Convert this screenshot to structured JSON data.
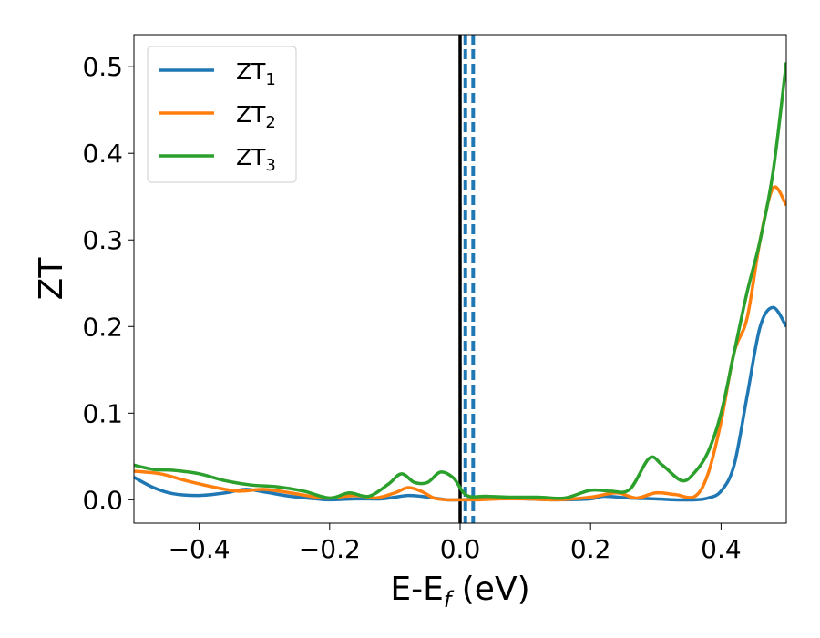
{
  "chart_data": {
    "type": "line",
    "xlabel": "E-E",
    "xlabel_sub": "f",
    "xlabel_unit": " (eV)",
    "ylabel": "ZT",
    "xlim": [
      -0.5,
      0.5
    ],
    "ylim": [
      -0.027,
      0.537
    ],
    "x_ticks": [
      -0.4,
      -0.2,
      0.0,
      0.2,
      0.4
    ],
    "x_tick_labels": [
      "−0.4",
      "−0.2",
      "0.0",
      "0.2",
      "0.4"
    ],
    "y_ticks": [
      0.0,
      0.1,
      0.2,
      0.3,
      0.4,
      0.5
    ],
    "y_tick_labels": [
      "0.0",
      "0.1",
      "0.2",
      "0.3",
      "0.4",
      "0.5"
    ],
    "legend_position": "top-left",
    "vertical_lines": [
      {
        "x": 0.0,
        "style": "solid",
        "color": "#000000"
      },
      {
        "x": 0.008,
        "style": "dashed",
        "color": "#1f77b4"
      },
      {
        "x": 0.02,
        "style": "dashed",
        "color": "#1f77b4"
      }
    ],
    "series": [
      {
        "name": "ZT",
        "name_sub": "1",
        "color": "#1f77b4",
        "x": [
          -0.5,
          -0.47,
          -0.44,
          -0.4,
          -0.36,
          -0.33,
          -0.3,
          -0.26,
          -0.22,
          -0.2,
          -0.16,
          -0.12,
          -0.1,
          -0.08,
          -0.06,
          -0.04,
          -0.02,
          0.0,
          0.03,
          0.06,
          0.1,
          0.15,
          0.2,
          0.22,
          0.26,
          0.3,
          0.33,
          0.36,
          0.38,
          0.4,
          0.42,
          0.44,
          0.46,
          0.48,
          0.5
        ],
        "y": [
          0.026,
          0.014,
          0.007,
          0.005,
          0.008,
          0.012,
          0.009,
          0.004,
          0.001,
          0.0,
          0.001,
          0.001,
          0.003,
          0.005,
          0.004,
          0.002,
          0.0,
          0.0,
          0.001,
          0.002,
          0.001,
          0.0,
          0.001,
          0.004,
          0.002,
          0.001,
          0.0,
          0.0,
          0.002,
          0.01,
          0.04,
          0.12,
          0.2,
          0.222,
          0.2
        ]
      },
      {
        "name": "ZT",
        "name_sub": "2",
        "color": "#ff7f0e",
        "x": [
          -0.5,
          -0.46,
          -0.42,
          -0.38,
          -0.34,
          -0.3,
          -0.26,
          -0.22,
          -0.2,
          -0.16,
          -0.13,
          -0.1,
          -0.08,
          -0.06,
          -0.04,
          -0.02,
          0.0,
          0.03,
          0.06,
          0.1,
          0.15,
          0.2,
          0.24,
          0.27,
          0.3,
          0.33,
          0.36,
          0.38,
          0.4,
          0.42,
          0.44,
          0.46,
          0.48,
          0.5
        ],
        "y": [
          0.033,
          0.03,
          0.022,
          0.015,
          0.01,
          0.012,
          0.008,
          0.003,
          0.002,
          0.005,
          0.002,
          0.008,
          0.014,
          0.01,
          0.002,
          0.0,
          0.0,
          0.0,
          0.001,
          0.001,
          0.0,
          0.003,
          0.008,
          0.002,
          0.008,
          0.006,
          0.004,
          0.03,
          0.09,
          0.17,
          0.21,
          0.3,
          0.36,
          0.34
        ]
      },
      {
        "name": "ZT",
        "name_sub": "3",
        "color": "#2ca02c",
        "x": [
          -0.5,
          -0.47,
          -0.44,
          -0.4,
          -0.36,
          -0.32,
          -0.28,
          -0.24,
          -0.2,
          -0.17,
          -0.14,
          -0.11,
          -0.09,
          -0.07,
          -0.05,
          -0.03,
          -0.01,
          0.01,
          0.04,
          0.08,
          0.12,
          0.16,
          0.2,
          0.23,
          0.26,
          0.29,
          0.31,
          0.34,
          0.36,
          0.38,
          0.4,
          0.42,
          0.44,
          0.46,
          0.48,
          0.5
        ],
        "y": [
          0.04,
          0.035,
          0.034,
          0.03,
          0.022,
          0.017,
          0.015,
          0.01,
          0.002,
          0.008,
          0.004,
          0.018,
          0.03,
          0.02,
          0.02,
          0.032,
          0.025,
          0.005,
          0.004,
          0.003,
          0.003,
          0.002,
          0.011,
          0.01,
          0.012,
          0.048,
          0.04,
          0.022,
          0.032,
          0.055,
          0.1,
          0.17,
          0.24,
          0.3,
          0.38,
          0.505
        ]
      }
    ]
  }
}
